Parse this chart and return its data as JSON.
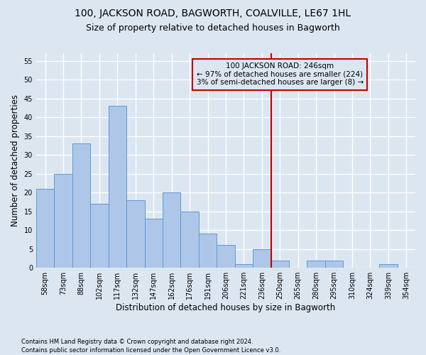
{
  "title": "100, JACKSON ROAD, BAGWORTH, COALVILLE, LE67 1HL",
  "subtitle": "Size of property relative to detached houses in Bagworth",
  "xlabel": "Distribution of detached houses by size in Bagworth",
  "ylabel": "Number of detached properties",
  "footnote1": "Contains HM Land Registry data © Crown copyright and database right 2024.",
  "footnote2": "Contains public sector information licensed under the Open Government Licence v3.0.",
  "bar_labels": [
    "58sqm",
    "73sqm",
    "88sqm",
    "102sqm",
    "117sqm",
    "132sqm",
    "147sqm",
    "162sqm",
    "176sqm",
    "191sqm",
    "206sqm",
    "221sqm",
    "236sqm",
    "250sqm",
    "265sqm",
    "280sqm",
    "295sqm",
    "310sqm",
    "324sqm",
    "339sqm",
    "354sqm"
  ],
  "bar_heights": [
    21,
    25,
    33,
    17,
    43,
    18,
    13,
    20,
    15,
    9,
    6,
    1,
    5,
    2,
    0,
    2,
    2,
    0,
    0,
    1,
    0
  ],
  "bar_color": "#aec6e8",
  "bar_edge_color": "#5b9bd5",
  "background_color": "#dce6f1",
  "grid_color": "#ffffff",
  "annotation_text": "100 JACKSON ROAD: 246sqm\n← 97% of detached houses are smaller (224)\n3% of semi-detached houses are larger (8) →",
  "vline_x": 12.5,
  "vline_color": "#c00000",
  "annotation_box_edge_color": "#c00000",
  "ylim": [
    0,
    57
  ],
  "yticks": [
    0,
    5,
    10,
    15,
    20,
    25,
    30,
    35,
    40,
    45,
    50,
    55
  ],
  "title_fontsize": 10,
  "subtitle_fontsize": 9,
  "xlabel_fontsize": 8.5,
  "ylabel_fontsize": 8.5,
  "tick_fontsize": 7,
  "annot_fontsize": 7.5
}
